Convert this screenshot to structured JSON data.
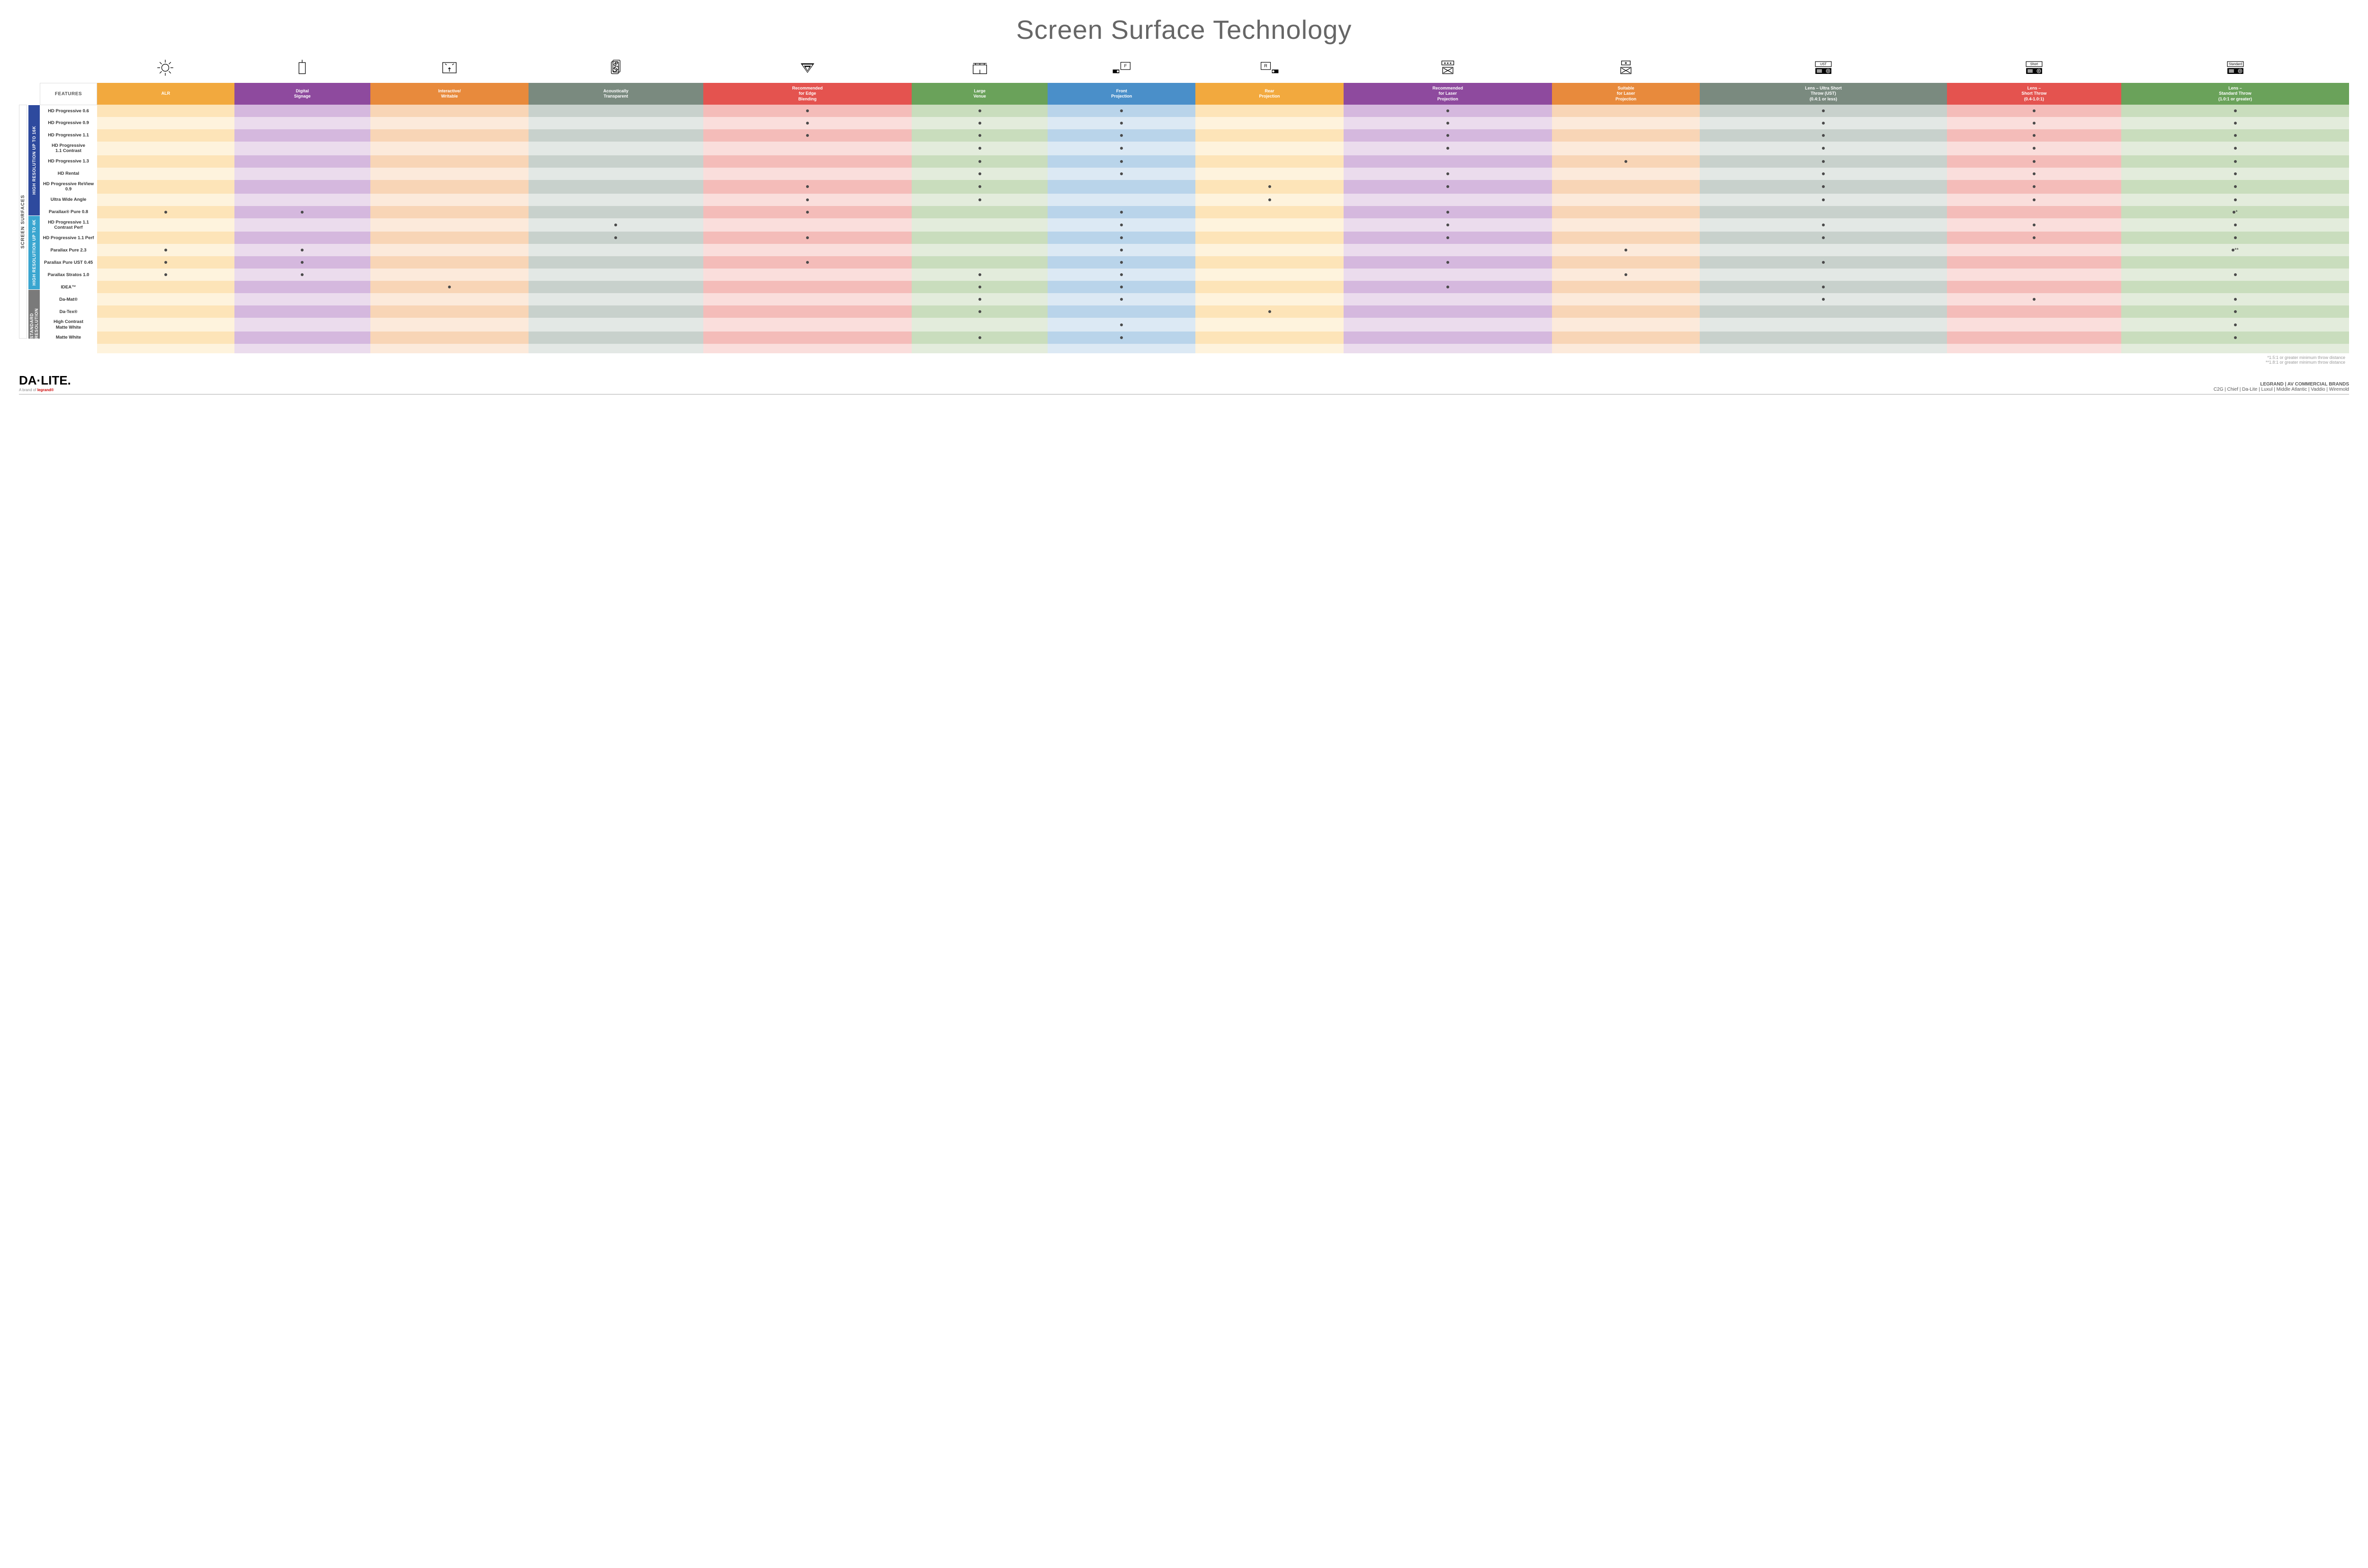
{
  "title": "Screen Surface Technology",
  "features_label": "FEATURES",
  "outer_vlabel": "SCREEN SURFACES",
  "columns": [
    {
      "label": "ALR",
      "color": "#f2a93e"
    },
    {
      "label": "Digital\nSignage",
      "color": "#8e4a9e"
    },
    {
      "label": "Interactive/\nWritable",
      "color": "#e88a3c"
    },
    {
      "label": "Acoustically\nTransparent",
      "color": "#7a8a7f"
    },
    {
      "label": "Recommended\nfor Edge\nBlending",
      "color": "#e4534f"
    },
    {
      "label": "Large\nVenue",
      "color": "#6aa25a"
    },
    {
      "label": "Front\nProjection",
      "color": "#4a8fc9"
    },
    {
      "label": "Rear\nProjection",
      "color": "#f2a93e"
    },
    {
      "label": "Recommended\nfor Laser\nProjection",
      "color": "#8e4a9e"
    },
    {
      "label": "Suitable\nfor Laser\nProjection",
      "color": "#e88a3c"
    },
    {
      "label": "Lens – Ultra Short\nThrow (UST)\n(0.4:1 or less)",
      "color": "#7a8a7f"
    },
    {
      "label": "Lens –\nShort Throw\n(0.4-1.0:1)",
      "color": "#e4534f"
    },
    {
      "label": "Lens –\nStandard Throw\n(1.0:1 or greater)",
      "color": "#6aa25a"
    }
  ],
  "column_light": [
    "#fde4b8",
    "#d5b8de",
    "#f8d5b6",
    "#c8d1cc",
    "#f4bcb9",
    "#c9ddbd",
    "#b9d4ea",
    "#fde4b8",
    "#d5b8de",
    "#f8d5b6",
    "#c8d1cc",
    "#f4bcb9",
    "#c9ddbd"
  ],
  "column_lighter": [
    "#fef3dd",
    "#ebdced",
    "#fceadb",
    "#e3e8e5",
    "#fadedc",
    "#e3ecdc",
    "#dce9f4",
    "#fef3dd",
    "#ebdced",
    "#fceadb",
    "#e3e8e5",
    "#fadedc",
    "#e3ecdc"
  ],
  "groups": [
    {
      "label": "HIGH RESOLUTION UP TO 16K",
      "color": "#2e4a9e",
      "rows": 9
    },
    {
      "label": "HIGH RESOLUTION UP TO 4K",
      "color": "#3aa6d0",
      "rows": 6
    },
    {
      "label": "STANDARD\nRESOLUTION",
      "color": "#7a7a7a",
      "rows": 4
    }
  ],
  "rows": [
    {
      "name": "HD Progressive 0.6",
      "marks": [
        0,
        0,
        0,
        0,
        1,
        1,
        1,
        0,
        1,
        0,
        1,
        1,
        1
      ]
    },
    {
      "name": "HD Progressive 0.9",
      "marks": [
        0,
        0,
        0,
        0,
        1,
        1,
        1,
        0,
        1,
        0,
        1,
        1,
        1
      ]
    },
    {
      "name": "HD Progressive 1.1",
      "marks": [
        0,
        0,
        0,
        0,
        1,
        1,
        1,
        0,
        1,
        0,
        1,
        1,
        1
      ]
    },
    {
      "name": "HD Progressive\n1.1 Contrast",
      "marks": [
        0,
        0,
        0,
        0,
        0,
        1,
        1,
        0,
        1,
        0,
        1,
        1,
        1
      ]
    },
    {
      "name": "HD Progressive 1.3",
      "marks": [
        0,
        0,
        0,
        0,
        0,
        1,
        1,
        0,
        0,
        1,
        1,
        1,
        1
      ]
    },
    {
      "name": "HD Rental",
      "marks": [
        0,
        0,
        0,
        0,
        0,
        1,
        1,
        0,
        1,
        0,
        1,
        1,
        1
      ]
    },
    {
      "name": "HD Progressive ReView 0.9",
      "marks": [
        0,
        0,
        0,
        0,
        1,
        1,
        0,
        1,
        1,
        0,
        1,
        1,
        1
      ]
    },
    {
      "name": "Ultra Wide Angle",
      "marks": [
        0,
        0,
        0,
        0,
        1,
        1,
        0,
        1,
        0,
        0,
        1,
        1,
        1
      ]
    },
    {
      "name": "Parallax® Pure 0.8",
      "marks": [
        1,
        1,
        0,
        0,
        1,
        0,
        1,
        0,
        1,
        0,
        0,
        0,
        "•*"
      ]
    },
    {
      "name": "HD Progressive 1.1\nContrast Perf",
      "marks": [
        0,
        0,
        0,
        1,
        0,
        0,
        1,
        0,
        1,
        0,
        1,
        1,
        1
      ]
    },
    {
      "name": "HD Progressive 1.1 Perf",
      "marks": [
        0,
        0,
        0,
        1,
        1,
        0,
        1,
        0,
        1,
        0,
        1,
        1,
        1
      ]
    },
    {
      "name": "Parallax Pure 2.3",
      "marks": [
        1,
        1,
        0,
        0,
        0,
        0,
        1,
        0,
        0,
        1,
        0,
        0,
        "•**"
      ]
    },
    {
      "name": "Parallax Pure UST 0.45",
      "marks": [
        1,
        1,
        0,
        0,
        1,
        0,
        1,
        0,
        1,
        0,
        1,
        0,
        0
      ]
    },
    {
      "name": "Parallax Stratos 1.0",
      "marks": [
        1,
        1,
        0,
        0,
        0,
        1,
        1,
        0,
        0,
        1,
        0,
        0,
        1
      ]
    },
    {
      "name": "IDEA™",
      "marks": [
        0,
        0,
        1,
        0,
        0,
        1,
        1,
        0,
        1,
        0,
        1,
        0,
        0
      ]
    },
    {
      "name": "Da-Mat®",
      "marks": [
        0,
        0,
        0,
        0,
        0,
        1,
        1,
        0,
        0,
        0,
        1,
        1,
        1
      ]
    },
    {
      "name": "Da-Tex®",
      "marks": [
        0,
        0,
        0,
        0,
        0,
        1,
        0,
        1,
        0,
        0,
        0,
        0,
        1
      ]
    },
    {
      "name": "High Contrast\nMatte White",
      "marks": [
        0,
        0,
        0,
        0,
        0,
        0,
        1,
        0,
        0,
        0,
        0,
        0,
        1
      ]
    },
    {
      "name": "Matte White",
      "marks": [
        0,
        0,
        0,
        0,
        0,
        1,
        1,
        0,
        0,
        0,
        0,
        0,
        1
      ]
    }
  ],
  "footnotes": [
    "*1.5:1 or greater minimum throw distance",
    "**1.8:1 or greater minimum throw distance"
  ],
  "footer": {
    "logo": "DA·LITE.",
    "logo_sub_prefix": "A brand of ",
    "logo_sub_brand": "legrand®",
    "headline": "LEGRAND | AV COMMERCIAL BRANDS",
    "brands": "C2G  |  Chief  |  Da-Lite  |  Luxul  |  Middle Atlantic  |  Vaddio  |  Wiremold"
  },
  "icons": [
    "bulb",
    "rect",
    "touch",
    "speaker",
    "triangle",
    "venue",
    "front",
    "rear",
    "laser-rec",
    "laser-suit",
    "ust",
    "short",
    "standard"
  ]
}
